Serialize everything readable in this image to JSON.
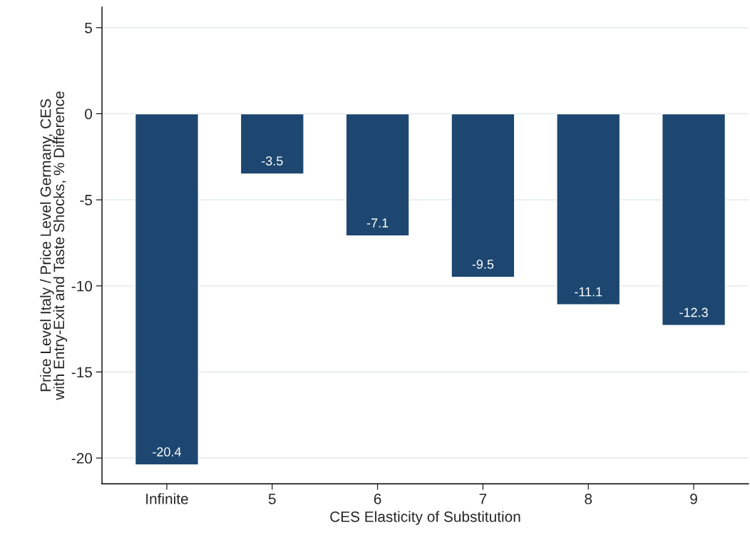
{
  "chart_data": {
    "type": "bar",
    "xlabel": "CES Elasticity of Substitution",
    "ylabel": "Price Level Italy / Price Level Germany, CES\nwith Entry-Exit and Taste Shocks, % Difference",
    "categories": [
      "Infinite",
      "5",
      "6",
      "7",
      "8",
      "9"
    ],
    "values": [
      -20.4,
      -3.5,
      -7.1,
      -9.5,
      -11.1,
      -12.3
    ],
    "color": "#1d4770",
    "ylim": [
      -21.5,
      6.2
    ],
    "yticks": [
      -20,
      -15,
      -10,
      -5,
      0,
      5
    ],
    "grid": "y",
    "data_labels": true
  }
}
